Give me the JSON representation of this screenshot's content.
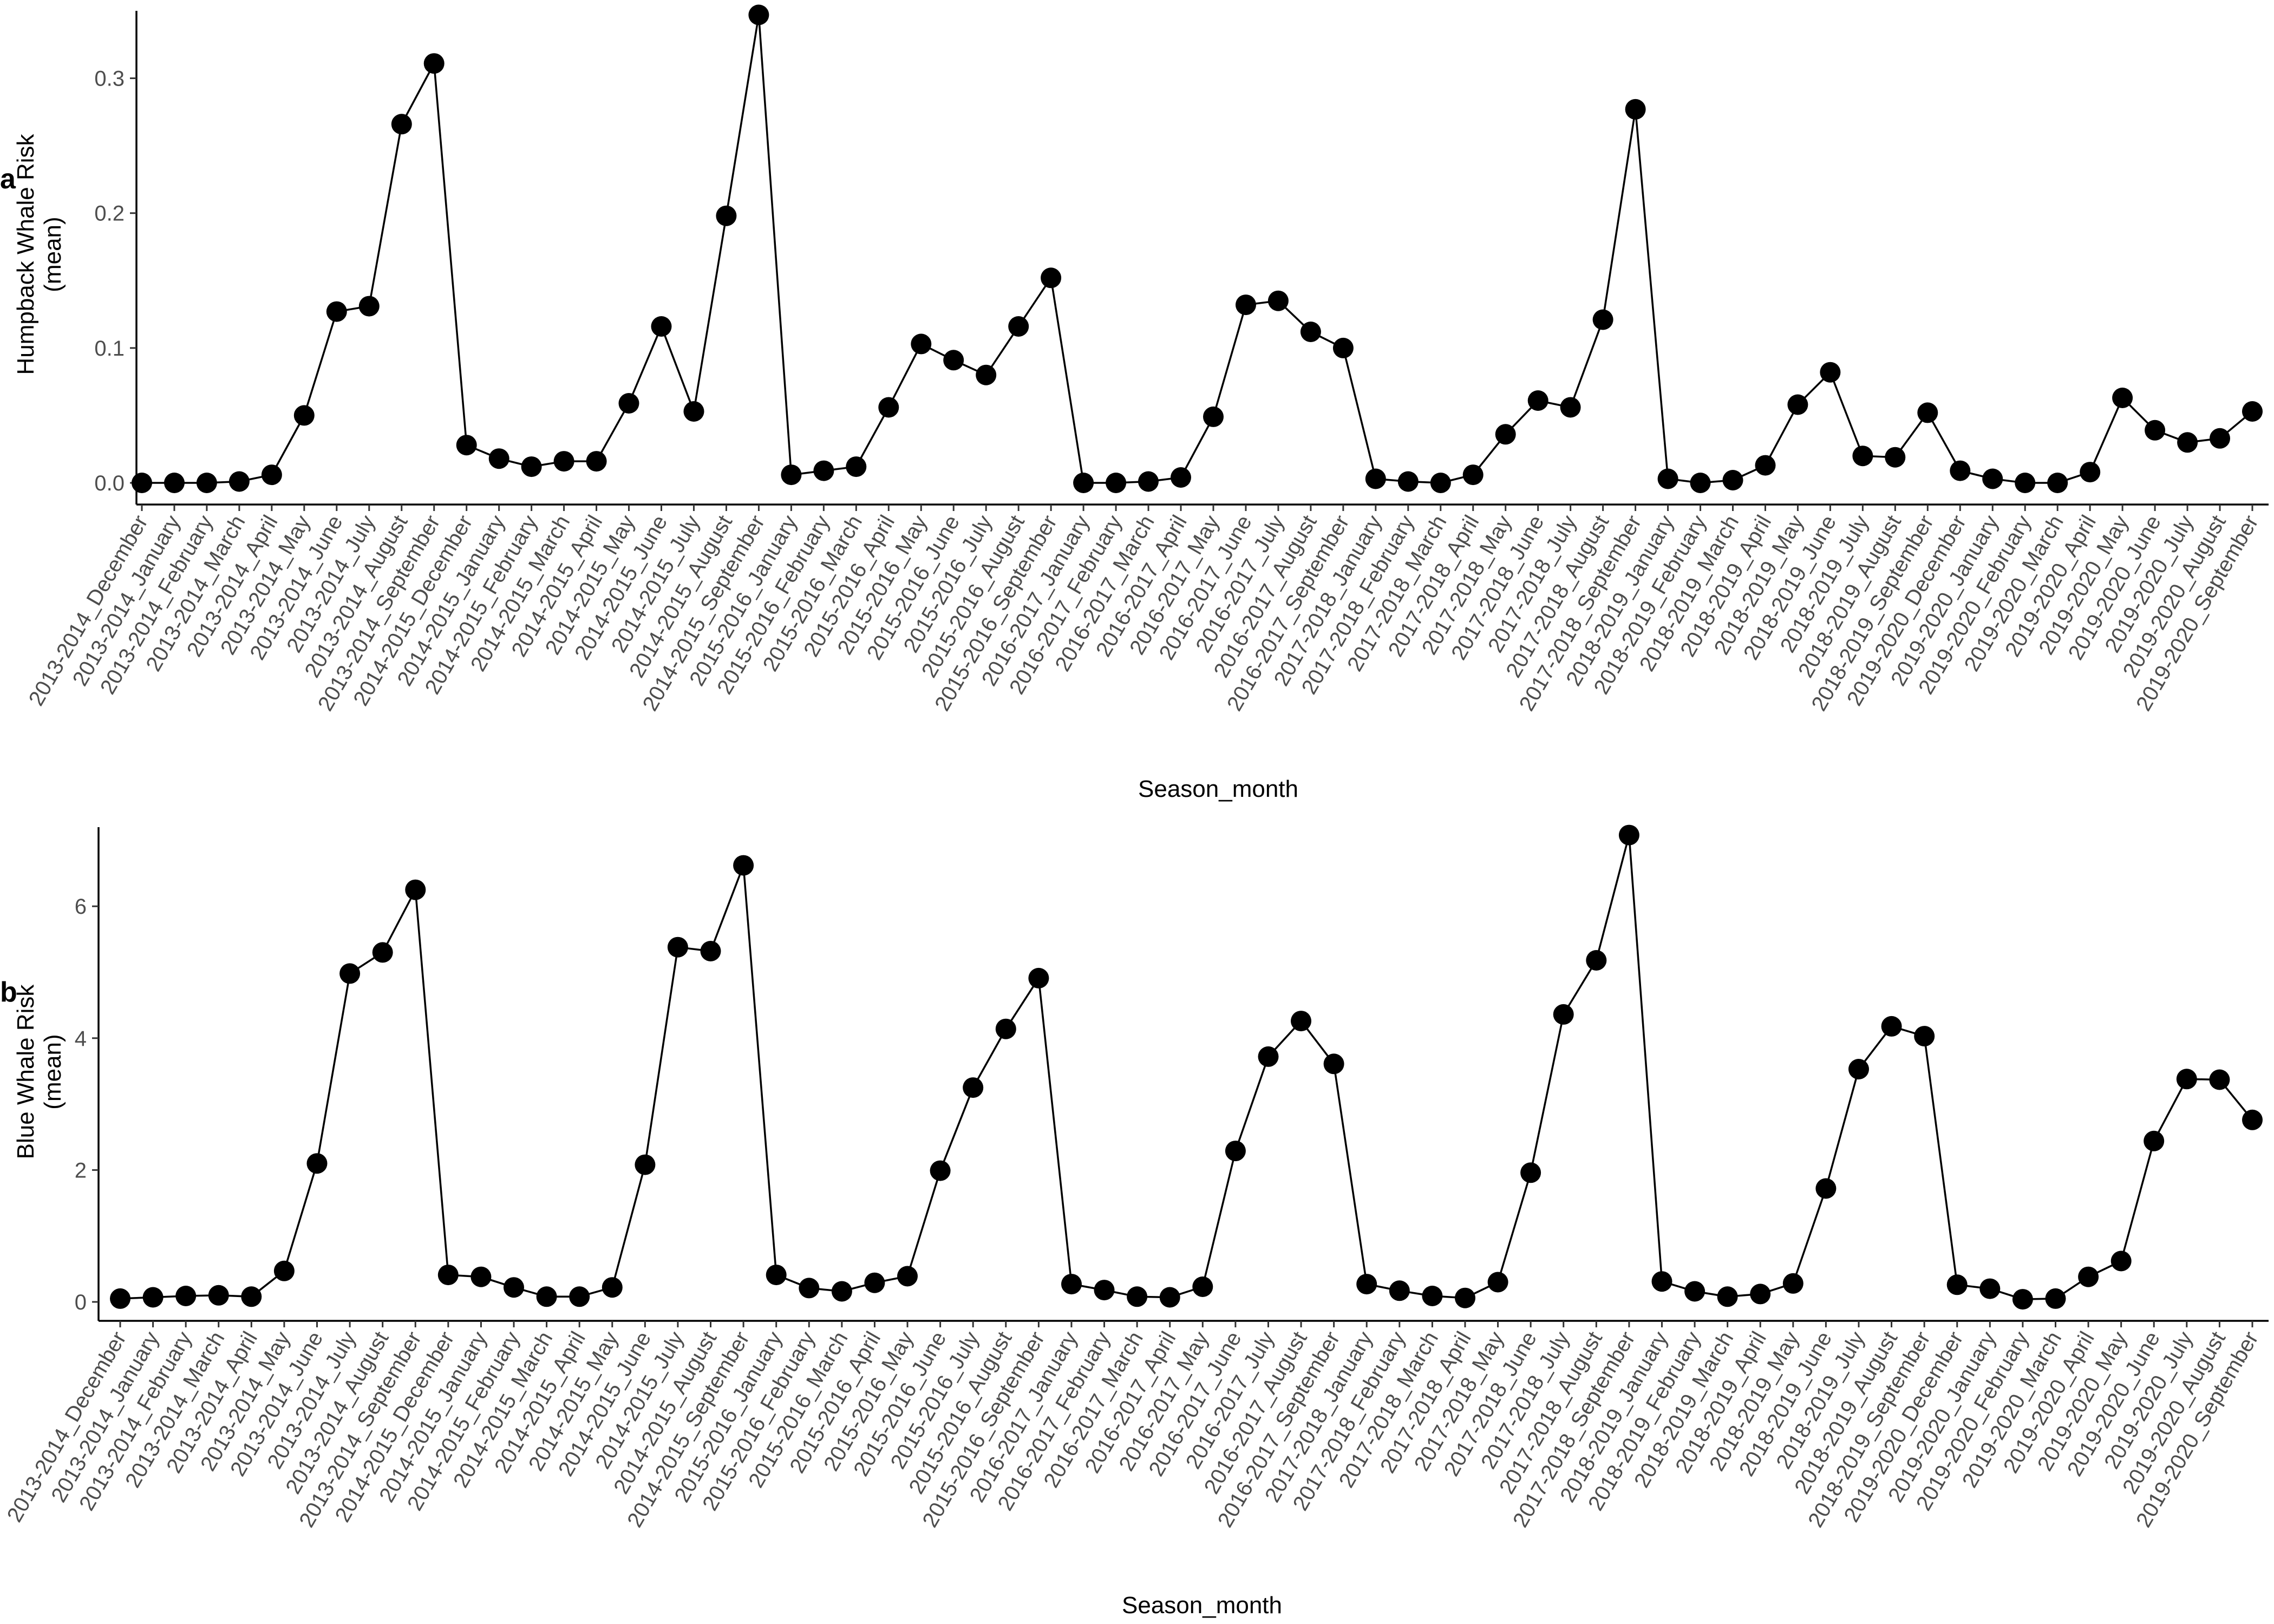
{
  "chart_data": [
    {
      "type": "line",
      "panel_tag": "a",
      "ylabel_line1": "Humpback Whale Risk",
      "ylabel_line2": "(mean)",
      "xlabel": "Season_month",
      "ylim": [
        0,
        0.35
      ],
      "y_ticks": [
        0.0,
        0.1,
        0.2,
        0.3
      ],
      "y_tick_labels": [
        "0.0",
        "0.1",
        "0.2",
        "0.3"
      ],
      "grid": false,
      "categories": [
        "2013-2014_December",
        "2013-2014_January",
        "2013-2014_February",
        "2013-2014_March",
        "2013-2014_April",
        "2013-2014_May",
        "2013-2014_June",
        "2013-2014_July",
        "2013-2014_August",
        "2013-2014_September",
        "2014-2015_December",
        "2014-2015_January",
        "2014-2015_February",
        "2014-2015_March",
        "2014-2015_April",
        "2014-2015_May",
        "2014-2015_June",
        "2014-2015_July",
        "2014-2015_August",
        "2014-2015_September",
        "2015-2016_January",
        "2015-2016_February",
        "2015-2016_March",
        "2015-2016_April",
        "2015-2016_May",
        "2015-2016_June",
        "2015-2016_July",
        "2015-2016_August",
        "2015-2016_September",
        "2016-2017_January",
        "2016-2017_February",
        "2016-2017_March",
        "2016-2017_April",
        "2016-2017_May",
        "2016-2017_June",
        "2016-2017_July",
        "2016-2017_August",
        "2016-2017_September",
        "2017-2018_January",
        "2017-2018_February",
        "2017-2018_March",
        "2017-2018_April",
        "2017-2018_May",
        "2017-2018_June",
        "2017-2018_July",
        "2017-2018_August",
        "2017-2018_September",
        "2018-2019_January",
        "2018-2019_February",
        "2018-2019_March",
        "2018-2019_April",
        "2018-2019_May",
        "2018-2019_June",
        "2018-2019_July",
        "2018-2019_August",
        "2018-2019_September",
        "2019-2020_December",
        "2019-2020_January",
        "2019-2020_February",
        "2019-2020_March",
        "2019-2020_April",
        "2019-2020_May",
        "2019-2020_June",
        "2019-2020_July",
        "2019-2020_August",
        "2019-2020_September"
      ],
      "values": [
        0.0,
        0.0,
        0.0,
        0.001,
        0.006,
        0.05,
        0.127,
        0.131,
        0.266,
        0.311,
        0.028,
        0.018,
        0.012,
        0.016,
        0.016,
        0.059,
        0.116,
        0.053,
        0.198,
        0.347,
        0.006,
        0.009,
        0.012,
        0.056,
        0.103,
        0.091,
        0.08,
        0.116,
        0.152,
        0.0,
        0.0,
        0.001,
        0.004,
        0.049,
        0.132,
        0.135,
        0.112,
        0.1,
        0.003,
        0.001,
        0.0,
        0.006,
        0.036,
        0.061,
        0.056,
        0.121,
        0.277,
        0.003,
        0.0,
        0.002,
        0.013,
        0.058,
        0.082,
        0.02,
        0.019,
        0.052,
        0.009,
        0.003,
        0.0,
        0.0,
        0.008,
        0.063,
        0.039,
        0.03,
        0.033,
        0.053
      ]
    },
    {
      "type": "line",
      "panel_tag": "b",
      "ylabel_line1": "Blue Whale Risk",
      "ylabel_line2": "(mean)",
      "xlabel": "Season_month",
      "ylim": [
        0,
        7.2
      ],
      "y_ticks": [
        0,
        2,
        4,
        6
      ],
      "y_tick_labels": [
        "0",
        "2",
        "4",
        "6"
      ],
      "grid": false,
      "categories": [
        "2013-2014_December",
        "2013-2014_January",
        "2013-2014_February",
        "2013-2014_March",
        "2013-2014_April",
        "2013-2014_May",
        "2013-2014_June",
        "2013-2014_July",
        "2013-2014_August",
        "2013-2014_September",
        "2014-2015_December",
        "2014-2015_January",
        "2014-2015_February",
        "2014-2015_March",
        "2014-2015_April",
        "2014-2015_May",
        "2014-2015_June",
        "2014-2015_July",
        "2014-2015_August",
        "2014-2015_September",
        "2015-2016_January",
        "2015-2016_February",
        "2015-2016_March",
        "2015-2016_April",
        "2015-2016_May",
        "2015-2016_June",
        "2015-2016_July",
        "2015-2016_August",
        "2015-2016_September",
        "2016-2017_January",
        "2016-2017_February",
        "2016-2017_March",
        "2016-2017_April",
        "2016-2017_May",
        "2016-2017_June",
        "2016-2017_July",
        "2016-2017_August",
        "2016-2017_September",
        "2017-2018_January",
        "2017-2018_February",
        "2017-2018_March",
        "2017-2018_April",
        "2017-2018_May",
        "2017-2018_June",
        "2017-2018_July",
        "2017-2018_August",
        "2017-2018_September",
        "2018-2019_January",
        "2018-2019_February",
        "2018-2019_March",
        "2018-2019_April",
        "2018-2019_May",
        "2018-2019_June",
        "2018-2019_July",
        "2018-2019_August",
        "2018-2019_September",
        "2019-2020_December",
        "2019-2020_January",
        "2019-2020_February",
        "2019-2020_March",
        "2019-2020_April",
        "2019-2020_May",
        "2019-2020_June",
        "2019-2020_July",
        "2019-2020_August",
        "2019-2020_September"
      ],
      "values": [
        0.05,
        0.07,
        0.09,
        0.1,
        0.08,
        0.47,
        2.1,
        4.98,
        5.3,
        6.25,
        0.41,
        0.38,
        0.22,
        0.08,
        0.08,
        0.22,
        2.08,
        5.38,
        5.32,
        6.62,
        0.41,
        0.21,
        0.16,
        0.29,
        0.39,
        1.99,
        3.25,
        4.14,
        4.91,
        0.27,
        0.18,
        0.08,
        0.07,
        0.23,
        2.29,
        3.72,
        4.26,
        3.61,
        0.27,
        0.17,
        0.09,
        0.06,
        0.3,
        1.96,
        4.36,
        5.18,
        7.08,
        0.31,
        0.16,
        0.08,
        0.12,
        0.28,
        1.72,
        3.53,
        4.18,
        4.03,
        0.26,
        0.2,
        0.04,
        0.05,
        0.38,
        0.62,
        2.44,
        3.38,
        3.37,
        2.76
      ]
    }
  ]
}
